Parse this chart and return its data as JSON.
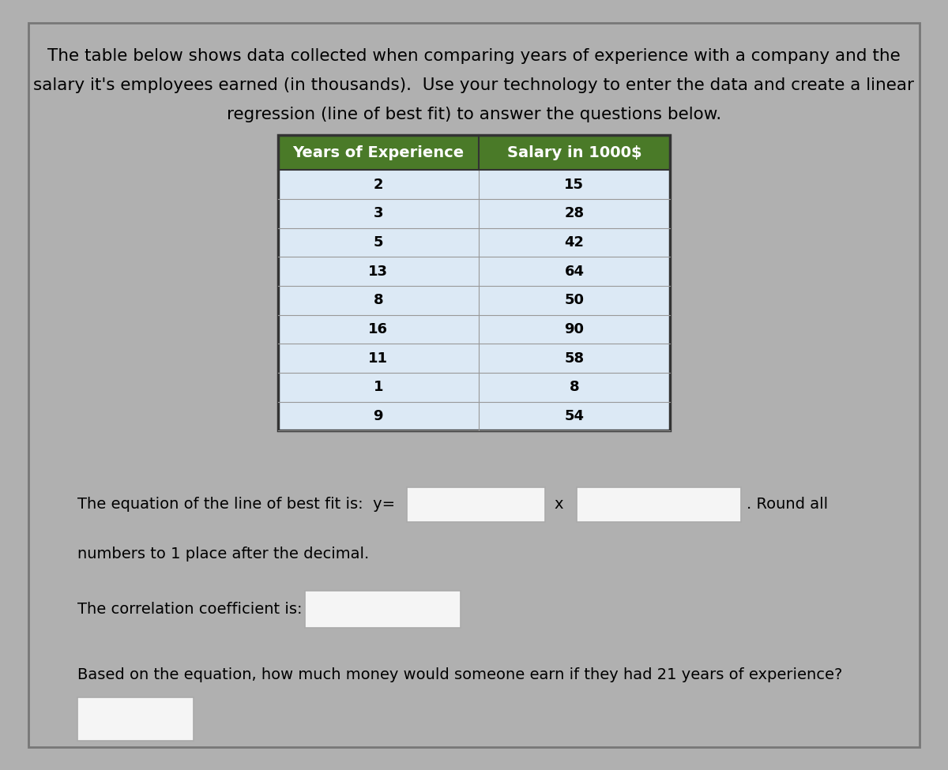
{
  "title_line1": "The table below shows data collected when comparing years of experience with a company and the",
  "title_line2": "salary it's employees earned (in thousands).  Use your technology to enter the data and create a linear",
  "title_line3": "regression (line of best fit) to answer the questions below.",
  "col1_header": "Years of Experience",
  "col2_header": "Salary in 1000$",
  "col1_data": [
    2,
    3,
    5,
    13,
    8,
    16,
    11,
    1,
    9
  ],
  "col2_data": [
    15,
    28,
    42,
    64,
    50,
    90,
    58,
    8,
    54
  ],
  "header_bg": "#4a7a28",
  "header_text_color": "#ffffff",
  "row_bg_light": "#dce9f5",
  "row_text_color": "#000000",
  "cell_border_color": "#999999",
  "page_bg": "#ffffff",
  "outer_bg": "#b0b0b0",
  "eq_label": "The equation of the line of best fit is:  y=",
  "eq_x_label": "x",
  "round_label": " Round all",
  "round_label2": "numbers to 1 place after the decimal.",
  "corr_label": "The correlation coefficient is:",
  "question_label": "Based on the equation, how much money would someone earn if they had 21 years of experience?",
  "input_box_color": "#f5f5f5",
  "input_box_border": "#aaaaaa",
  "font_size_title": 15.5,
  "font_size_table_header": 14,
  "font_size_table_data": 13,
  "font_size_body": 14
}
